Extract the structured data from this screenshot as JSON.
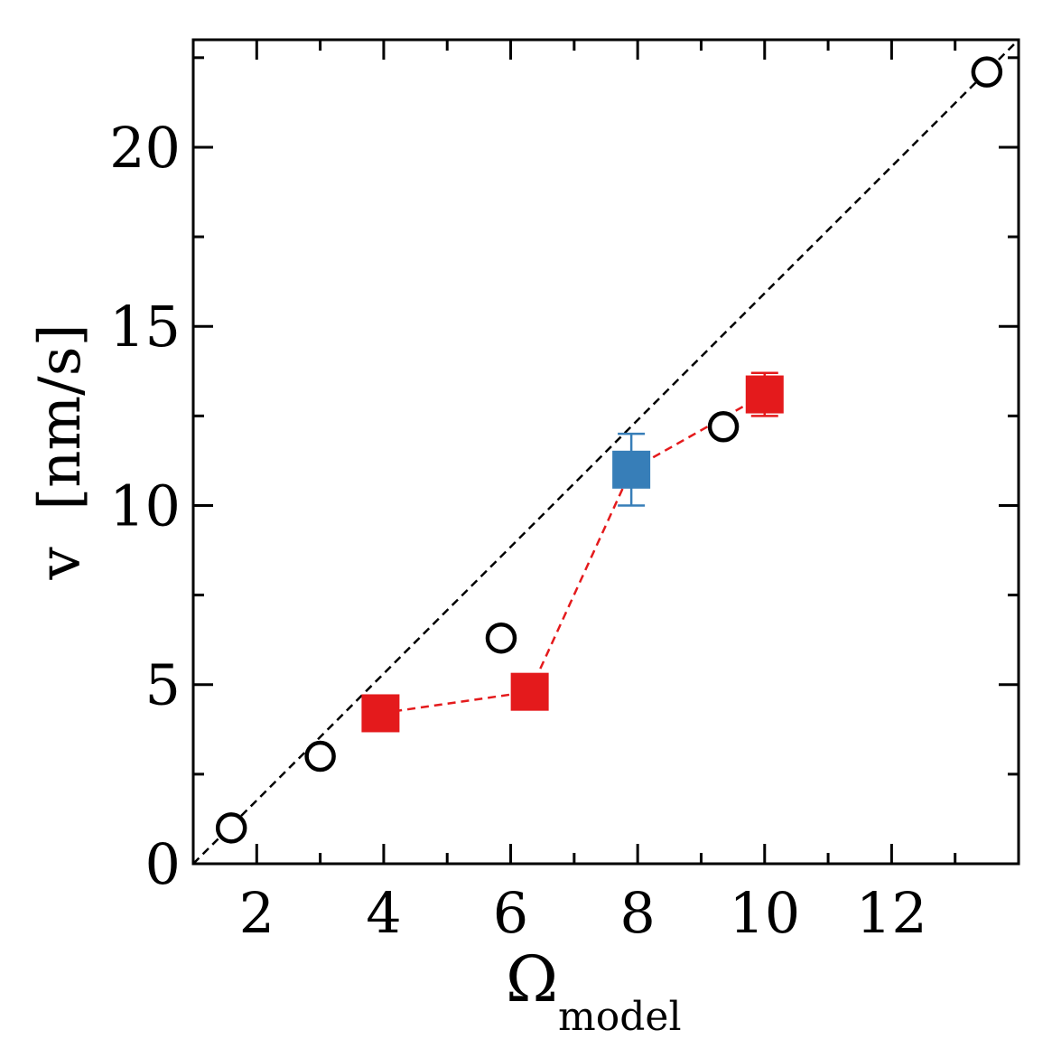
{
  "chart_data": {
    "type": "scatter",
    "title": "",
    "xlabel": {
      "main": "Ω",
      "sub": "model"
    },
    "ylabel": "v  [nm/s]",
    "xlim": [
      1.0,
      14.0
    ],
    "ylim": [
      0,
      23
    ],
    "x_ticks": [
      2,
      4,
      6,
      8,
      10,
      12
    ],
    "x_tick_labels": [
      "2",
      "4",
      "6",
      "8",
      "10",
      "12"
    ],
    "x_minor_ticks": [
      3,
      5,
      7,
      9,
      11,
      13
    ],
    "y_ticks": [
      0,
      5,
      10,
      15,
      20
    ],
    "y_tick_labels": [
      "0",
      "5",
      "10",
      "15",
      "20"
    ],
    "y_minor_ticks": [
      2.5,
      7.5,
      12.5,
      17.5,
      22.5
    ],
    "grid": false,
    "series": [
      {
        "marker": "open-circle",
        "color": "#000000",
        "line": "dashed",
        "points": [
          {
            "x": 1.6,
            "y": 1.0
          },
          {
            "x": 3.0,
            "y": 3.0
          },
          {
            "x": 5.85,
            "y": 6.3
          },
          {
            "x": 9.35,
            "y": 12.2
          },
          {
            "x": 13.5,
            "y": 22.1
          }
        ],
        "trend_line": {
          "from": [
            1.0,
            0.0
          ],
          "to": [
            14.0,
            23.0
          ]
        }
      },
      {
        "marker": "filled-square",
        "color": "#e41a1c",
        "line": "dashed",
        "points": [
          {
            "x": 3.95,
            "y": 4.2,
            "err": 0.3
          },
          {
            "x": 6.3,
            "y": 4.8,
            "err": 0.2
          },
          {
            "x": 7.9,
            "y": 11.0,
            "err": 1.0
          },
          {
            "x": 10.0,
            "y": 13.1,
            "err": 0.6
          }
        ]
      },
      {
        "marker": "filled-square",
        "color": "#377eb8",
        "line": "none",
        "points": [
          {
            "x": 7.9,
            "y": 11.0,
            "err": 1.0
          }
        ]
      }
    ]
  }
}
